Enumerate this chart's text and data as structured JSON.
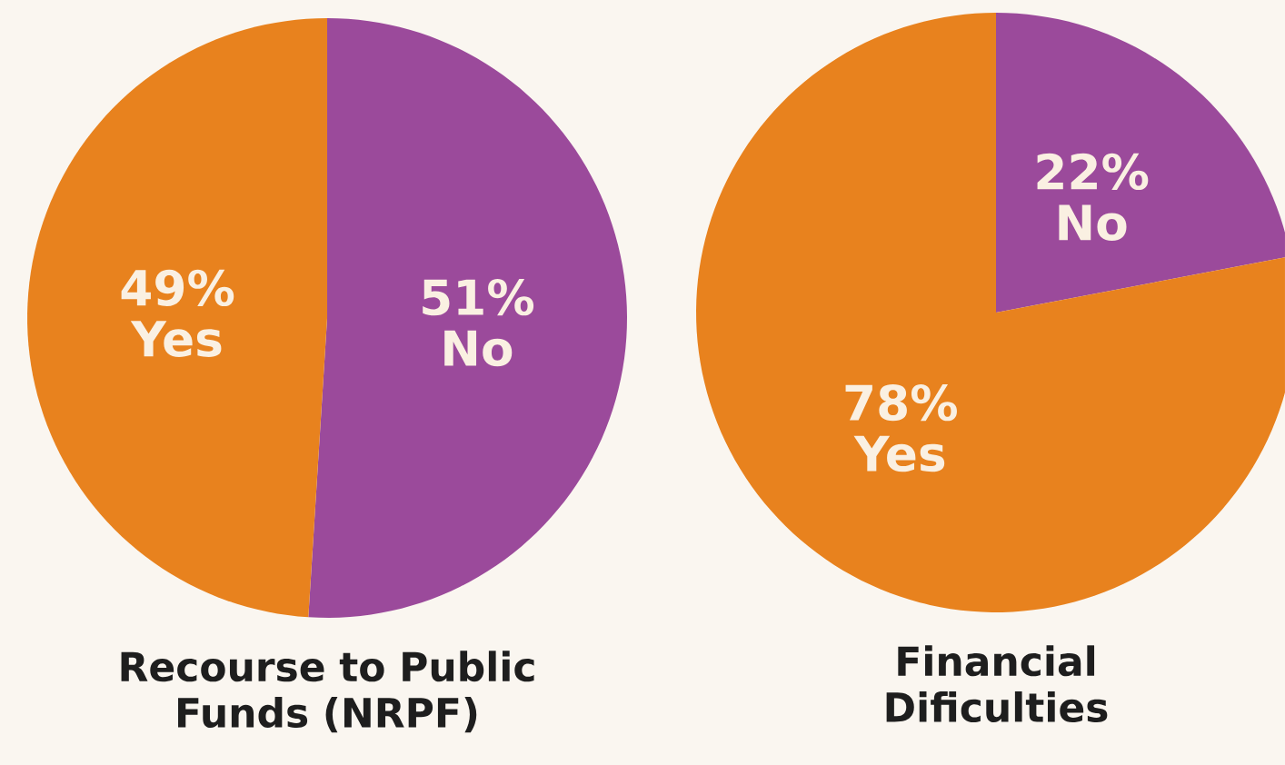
{
  "chart_data": [
    {
      "type": "pie",
      "title": "Recourse to Public Funds (NRPF)",
      "categories": [
        "No",
        "Yes"
      ],
      "values": [
        51,
        49
      ],
      "value_labels": [
        "51%",
        "49%"
      ],
      "colors": [
        "#9b4a9b",
        "#e8821e"
      ]
    },
    {
      "type": "pie",
      "title": "Financial Dificulties",
      "categories": [
        "No",
        "Yes"
      ],
      "values": [
        22,
        78
      ],
      "value_labels": [
        "22%",
        "78%"
      ],
      "colors": [
        "#9b4a9b",
        "#e8821e"
      ]
    }
  ]
}
